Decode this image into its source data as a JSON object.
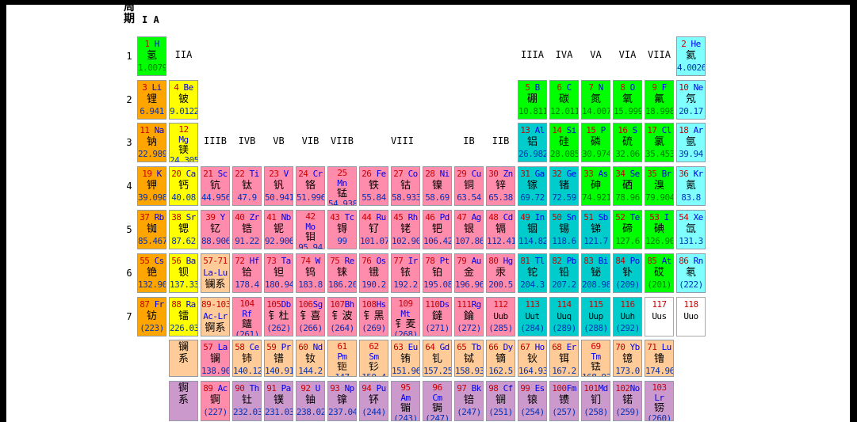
{
  "title_block": {
    "line1": "周",
    "line2": "期",
    "group1": "I A"
  },
  "group_headers": [
    {
      "label": "IIA",
      "row": "1",
      "col": 2
    },
    {
      "label": "IIIA",
      "row": "1",
      "col": 13
    },
    {
      "label": "IVA",
      "row": "1",
      "col": 14
    },
    {
      "label": "VA",
      "row": "1",
      "col": 15
    },
    {
      "label": "VIA",
      "row": "1",
      "col": 16
    },
    {
      "label": "VIIA",
      "row": "1",
      "col": 17
    },
    {
      "label": "IIIB",
      "row": "3",
      "col": 3
    },
    {
      "label": "IVB",
      "row": "3",
      "col": 4
    },
    {
      "label": "VB",
      "row": "3",
      "col": 5
    },
    {
      "label": "VIB",
      "row": "3",
      "col": 6
    },
    {
      "label": "VIIB",
      "row": "3",
      "col": 7
    },
    {
      "label": "VIII",
      "row": "3",
      "col": 8.9
    },
    {
      "label": "IB",
      "row": "3",
      "col": 11
    },
    {
      "label": "IIB",
      "row": "3",
      "col": 12
    }
  ],
  "periods": [
    {
      "n": "1",
      "row": "1"
    },
    {
      "n": "2",
      "row": "2"
    },
    {
      "n": "3",
      "row": "3"
    },
    {
      "n": "4",
      "row": "4"
    },
    {
      "n": "5",
      "row": "5"
    },
    {
      "n": "6",
      "row": "6"
    },
    {
      "n": "7",
      "row": "7"
    }
  ],
  "series_labels": [
    {
      "name": "lanthanide-series",
      "label": "镧系",
      "row": "L",
      "bg": "peach"
    },
    {
      "name": "actinide-series",
      "label": "锕系",
      "row": "A",
      "bg": "plum"
    }
  ],
  "colors": {
    "nonmetal_green": "#00FF00",
    "noble_gas_cyan": "#7FFFFF",
    "alkali_orange": "#FFA500",
    "alkaline_earth_yellow": "#FFFF00",
    "transition_pink": "#FF8CAA",
    "post_transition_teal": "#00CCCC",
    "lanthanide_peach": "#FFCC99",
    "actinide_plum": "#CC99CC",
    "undiscovered_white": "#FFFFFF",
    "number_text": "#CC0000",
    "symbol_text": "#0000EE",
    "mass_text_blue": "#0033BB",
    "mass_text_green": "#007700"
  },
  "elements": [
    {
      "n": "1",
      "s": "H",
      "cn": "氢",
      "m": "1.0079",
      "r": "1",
      "c": 1,
      "bg": "green"
    },
    {
      "n": "2",
      "s": "He",
      "cn": "氦",
      "m": "4.0026",
      "r": "1",
      "c": 18,
      "bg": "cyan"
    },
    {
      "n": "3",
      "s": "Li",
      "cn": "锂",
      "m": "6.941",
      "r": "2",
      "c": 1,
      "bg": "orange"
    },
    {
      "n": "4",
      "s": "Be",
      "cn": "铍",
      "m": "9.0122",
      "r": "2",
      "c": 2,
      "bg": "yellow"
    },
    {
      "n": "5",
      "s": "B",
      "cn": "硼",
      "m": "10.811",
      "r": "2",
      "c": 13,
      "bg": "green"
    },
    {
      "n": "6",
      "s": "C",
      "cn": "碳",
      "m": "12.011",
      "r": "2",
      "c": 14,
      "bg": "green"
    },
    {
      "n": "7",
      "s": "N",
      "cn": "氮",
      "m": "14.007",
      "r": "2",
      "c": 15,
      "bg": "green"
    },
    {
      "n": "8",
      "s": "O",
      "cn": "氧",
      "m": "15.999",
      "r": "2",
      "c": 16,
      "bg": "green"
    },
    {
      "n": "9",
      "s": "F",
      "cn": "氟",
      "m": "18.998",
      "r": "2",
      "c": 17,
      "bg": "green"
    },
    {
      "n": "10",
      "s": "Ne",
      "cn": "氖",
      "m": "20.17",
      "r": "2",
      "c": 18,
      "bg": "cyan"
    },
    {
      "n": "11",
      "s": "Na",
      "cn": "钠",
      "m": "22.9898",
      "r": "3",
      "c": 1,
      "bg": "orange"
    },
    {
      "n": "12",
      "s": "Mg",
      "cn": "镁",
      "m": "24.305",
      "r": "3",
      "c": 2,
      "bg": "yellow",
      "wrap": true
    },
    {
      "n": "13",
      "s": "Al",
      "cn": "铝",
      "m": "26.982",
      "r": "3",
      "c": 13,
      "bg": "teal"
    },
    {
      "n": "14",
      "s": "Si",
      "cn": "硅",
      "m": "28.085",
      "r": "3",
      "c": 14,
      "bg": "green"
    },
    {
      "n": "15",
      "s": "P",
      "cn": "磷",
      "m": "30.974",
      "r": "3",
      "c": 15,
      "bg": "green"
    },
    {
      "n": "16",
      "s": "S",
      "cn": "硫",
      "m": "32.06",
      "r": "3",
      "c": 16,
      "bg": "green"
    },
    {
      "n": "17",
      "s": "Cl",
      "cn": "氯",
      "m": "35.453",
      "r": "3",
      "c": 17,
      "bg": "green"
    },
    {
      "n": "18",
      "s": "Ar",
      "cn": "氩",
      "m": "39.94",
      "r": "3",
      "c": 18,
      "bg": "cyan"
    },
    {
      "n": "19",
      "s": "K",
      "cn": "钾",
      "m": "39.098",
      "r": "4",
      "c": 1,
      "bg": "orange"
    },
    {
      "n": "20",
      "s": "Ca",
      "cn": "钙",
      "m": "40.08",
      "r": "4",
      "c": 2,
      "bg": "yellow"
    },
    {
      "n": "21",
      "s": "Sc",
      "cn": "钪",
      "m": "44.956",
      "r": "4",
      "c": 3,
      "bg": "pink"
    },
    {
      "n": "22",
      "s": "Ti",
      "cn": "钛",
      "m": "47.9",
      "r": "4",
      "c": 4,
      "bg": "pink"
    },
    {
      "n": "23",
      "s": "V",
      "cn": "钒",
      "m": "50.9415",
      "r": "4",
      "c": 5,
      "bg": "pink"
    },
    {
      "n": "24",
      "s": "Cr",
      "cn": "铬",
      "m": "51.996",
      "r": "4",
      "c": 6,
      "bg": "pink"
    },
    {
      "n": "25",
      "s": "Mn",
      "cn": "锰",
      "m": "54.938",
      "r": "4",
      "c": 7,
      "bg": "pink",
      "wrap": true
    },
    {
      "n": "26",
      "s": "Fe",
      "cn": "铁",
      "m": "55.84",
      "r": "4",
      "c": 8,
      "bg": "pink"
    },
    {
      "n": "27",
      "s": "Co",
      "cn": "钴",
      "m": "58.933",
      "r": "4",
      "c": 9,
      "bg": "pink"
    },
    {
      "n": "28",
      "s": "Ni",
      "cn": "镍",
      "m": "58.69",
      "r": "4",
      "c": 10,
      "bg": "pink"
    },
    {
      "n": "29",
      "s": "Cu",
      "cn": "铜",
      "m": "63.54",
      "r": "4",
      "c": 11,
      "bg": "pink"
    },
    {
      "n": "30",
      "s": "Zn",
      "cn": "锌",
      "m": "65.38",
      "r": "4",
      "c": 12,
      "bg": "pink"
    },
    {
      "n": "31",
      "s": "Ga",
      "cn": "镓",
      "m": "69.72",
      "r": "4",
      "c": 13,
      "bg": "teal"
    },
    {
      "n": "32",
      "s": "Ge",
      "cn": "锗",
      "m": "72.59",
      "r": "4",
      "c": 14,
      "bg": "teal"
    },
    {
      "n": "33",
      "s": "As",
      "cn": "砷",
      "m": "74.9216",
      "r": "4",
      "c": 15,
      "bg": "green"
    },
    {
      "n": "34",
      "s": "Se",
      "cn": "硒",
      "m": "78.96",
      "r": "4",
      "c": 16,
      "bg": "green"
    },
    {
      "n": "35",
      "s": "Br",
      "cn": "溴",
      "m": "79.904",
      "r": "4",
      "c": 17,
      "bg": "green"
    },
    {
      "n": "36",
      "s": "Kr",
      "cn": "氪",
      "m": "83.8",
      "r": "4",
      "c": 18,
      "bg": "cyan"
    },
    {
      "n": "37",
      "s": "Rb",
      "cn": "铷",
      "m": "85.467",
      "r": "5",
      "c": 1,
      "bg": "orange"
    },
    {
      "n": "38",
      "s": "Sr",
      "cn": "锶",
      "m": "87.62",
      "r": "5",
      "c": 2,
      "bg": "yellow"
    },
    {
      "n": "39",
      "s": "Y",
      "cn": "钇",
      "m": "88.906",
      "r": "5",
      "c": 3,
      "bg": "pink"
    },
    {
      "n": "40",
      "s": "Zr",
      "cn": "锆",
      "m": "91.22",
      "r": "5",
      "c": 4,
      "bg": "pink"
    },
    {
      "n": "41",
      "s": "Nb",
      "cn": "铌",
      "m": "92.9064",
      "r": "5",
      "c": 5,
      "bg": "pink"
    },
    {
      "n": "42",
      "s": "Mo",
      "cn": "钼",
      "m": "95.94",
      "r": "5",
      "c": 6,
      "bg": "pink",
      "wrap": true
    },
    {
      "n": "43",
      "s": "Tc",
      "cn": "锝",
      "m": "99",
      "r": "5",
      "c": 7,
      "bg": "pink"
    },
    {
      "n": "44",
      "s": "Ru",
      "cn": "钌",
      "m": "101.07",
      "r": "5",
      "c": 8,
      "bg": "pink"
    },
    {
      "n": "45",
      "s": "Rh",
      "cn": "铑",
      "m": "102.906",
      "r": "5",
      "c": 9,
      "bg": "pink"
    },
    {
      "n": "46",
      "s": "Pd",
      "cn": "钯",
      "m": "106.42",
      "r": "5",
      "c": 10,
      "bg": "pink"
    },
    {
      "n": "47",
      "s": "Ag",
      "cn": "银",
      "m": "107.868",
      "r": "5",
      "c": 11,
      "bg": "pink"
    },
    {
      "n": "48",
      "s": "Cd",
      "cn": "镉",
      "m": "112.41",
      "r": "5",
      "c": 12,
      "bg": "pink"
    },
    {
      "n": "49",
      "s": "In",
      "cn": "铟",
      "m": "114.82",
      "r": "5",
      "c": 13,
      "bg": "teal"
    },
    {
      "n": "50",
      "s": "Sn",
      "cn": "锡",
      "m": "118.6",
      "r": "5",
      "c": 14,
      "bg": "teal"
    },
    {
      "n": "51",
      "s": "Sb",
      "cn": "锑",
      "m": "121.7",
      "r": "5",
      "c": 15,
      "bg": "teal"
    },
    {
      "n": "52",
      "s": "Te",
      "cn": "碲",
      "m": "127.6",
      "r": "5",
      "c": 16,
      "bg": "green"
    },
    {
      "n": "53",
      "s": "I",
      "cn": "碘",
      "m": "126.905",
      "r": "5",
      "c": 17,
      "bg": "green"
    },
    {
      "n": "54",
      "s": "Xe",
      "cn": "氙",
      "m": "131.3",
      "r": "5",
      "c": 18,
      "bg": "cyan"
    },
    {
      "n": "55",
      "s": "Cs",
      "cn": "铯",
      "m": "132.905",
      "r": "6",
      "c": 1,
      "bg": "orange"
    },
    {
      "n": "56",
      "s": "Ba",
      "cn": "钡",
      "m": "137.33",
      "r": "6",
      "c": 2,
      "bg": "yellow"
    },
    {
      "n": "57-71",
      "s": "La-Lu",
      "cn": "镧系",
      "m": "",
      "r": "6",
      "c": 3,
      "bg": "peach",
      "ph": true
    },
    {
      "n": "72",
      "s": "Hf",
      "cn": "铪",
      "m": "178.4",
      "r": "6",
      "c": 4,
      "bg": "pink"
    },
    {
      "n": "73",
      "s": "Ta",
      "cn": "钽",
      "m": "180.947",
      "r": "6",
      "c": 5,
      "bg": "pink"
    },
    {
      "n": "74",
      "s": "W",
      "cn": "钨",
      "m": "183.8",
      "r": "6",
      "c": 6,
      "bg": "pink"
    },
    {
      "n": "75",
      "s": "Re",
      "cn": "铼",
      "m": "186.207",
      "r": "6",
      "c": 7,
      "bg": "pink"
    },
    {
      "n": "76",
      "s": "Os",
      "cn": "锇",
      "m": "190.2",
      "r": "6",
      "c": 8,
      "bg": "pink"
    },
    {
      "n": "77",
      "s": "Ir",
      "cn": "铱",
      "m": "192.2",
      "r": "6",
      "c": 9,
      "bg": "pink"
    },
    {
      "n": "78",
      "s": "Pt",
      "cn": "铂",
      "m": "195.08",
      "r": "6",
      "c": 10,
      "bg": "pink"
    },
    {
      "n": "79",
      "s": "Au",
      "cn": "金",
      "m": "196.967",
      "r": "6",
      "c": 11,
      "bg": "pink"
    },
    {
      "n": "80",
      "s": "Hg",
      "cn": "汞",
      "m": "200.5",
      "r": "6",
      "c": 12,
      "bg": "pink"
    },
    {
      "n": "81",
      "s": "Tl",
      "cn": "铊",
      "m": "204.3",
      "r": "6",
      "c": 13,
      "bg": "teal"
    },
    {
      "n": "82",
      "s": "Pb",
      "cn": "铅",
      "m": "207.2",
      "r": "6",
      "c": 14,
      "bg": "teal"
    },
    {
      "n": "83",
      "s": "Bi",
      "cn": "铋",
      "m": "208.98",
      "r": "6",
      "c": 15,
      "bg": "teal"
    },
    {
      "n": "84",
      "s": "Po",
      "cn": "钋",
      "m": "(209)",
      "r": "6",
      "c": 16,
      "bg": "teal"
    },
    {
      "n": "85",
      "s": "At",
      "cn": "砹",
      "m": "(201)",
      "r": "6",
      "c": 17,
      "bg": "green"
    },
    {
      "n": "86",
      "s": "Rn",
      "cn": "氡",
      "m": "(222)",
      "r": "6",
      "c": 18,
      "bg": "cyan"
    },
    {
      "n": "87",
      "s": "Fr",
      "cn": "钫",
      "m": "(223)",
      "r": "7",
      "c": 1,
      "bg": "orange"
    },
    {
      "n": "88",
      "s": "Ra",
      "cn": "镭",
      "m": "226.03",
      "r": "7",
      "c": 2,
      "bg": "yellow"
    },
    {
      "n": "89-103",
      "s": "Ac-Lr",
      "cn": "锕系",
      "m": "",
      "r": "7",
      "c": 3,
      "bg": "peach",
      "ph": true
    },
    {
      "n": "104",
      "s": "Rf",
      "cn": "鑪",
      "m": "(261)",
      "r": "7",
      "c": 4,
      "bg": "pink",
      "wrap": true
    },
    {
      "n": "105",
      "s": "Db",
      "cn": "钅杜",
      "m": "(262)",
      "r": "7",
      "c": 5,
      "bg": "pink"
    },
    {
      "n": "106",
      "s": "Sg",
      "cn": "钅喜",
      "m": "(266)",
      "r": "7",
      "c": 6,
      "bg": "pink"
    },
    {
      "n": "107",
      "s": "Bh",
      "cn": "钅波",
      "m": "(264)",
      "r": "7",
      "c": 7,
      "bg": "pink"
    },
    {
      "n": "108",
      "s": "Hs",
      "cn": "钅黑",
      "m": "(269)",
      "r": "7",
      "c": 8,
      "bg": "pink"
    },
    {
      "n": "109",
      "s": "Mt",
      "cn": "钅麦",
      "m": "(268)",
      "r": "7",
      "c": 9,
      "bg": "pink",
      "wrap": true
    },
    {
      "n": "110",
      "s": "Ds",
      "cn": "鐽",
      "m": "(271)",
      "r": "7",
      "c": 10,
      "bg": "pink"
    },
    {
      "n": "111",
      "s": "Rg",
      "cn": "錀",
      "m": "(272)",
      "r": "7",
      "c": 11,
      "bg": "pink"
    },
    {
      "n": "112",
      "s": "Uub",
      "cn": "",
      "m": "(285)",
      "r": "7",
      "c": 12,
      "bg": "pink",
      "sk": true
    },
    {
      "n": "113",
      "s": "Uut",
      "cn": "",
      "m": "(284)",
      "r": "7",
      "c": 13,
      "bg": "teal",
      "sk": true
    },
    {
      "n": "114",
      "s": "Uuq",
      "cn": "",
      "m": "(289)",
      "r": "7",
      "c": 14,
      "bg": "teal",
      "sk": true
    },
    {
      "n": "115",
      "s": "Uup",
      "cn": "",
      "m": "(288)",
      "r": "7",
      "c": 15,
      "bg": "teal",
      "sk": true
    },
    {
      "n": "116",
      "s": "Uuh",
      "cn": "",
      "m": "(292)",
      "r": "7",
      "c": 16,
      "bg": "teal",
      "sk": true
    },
    {
      "n": "117",
      "s": "Uus",
      "cn": "",
      "m": "",
      "r": "7",
      "c": 17,
      "bg": "white",
      "sk": true
    },
    {
      "n": "118",
      "s": "Uuo",
      "cn": "",
      "m": "",
      "r": "7",
      "c": 18,
      "bg": "white",
      "sk": true
    },
    {
      "n": "57",
      "s": "La",
      "cn": "镧",
      "m": "138.905",
      "r": "L",
      "c": 3,
      "bg": "pink"
    },
    {
      "n": "58",
      "s": "Ce",
      "cn": "铈",
      "m": "140.12",
      "r": "L",
      "c": 4,
      "bg": "peach"
    },
    {
      "n": "59",
      "s": "Pr",
      "cn": "镨",
      "m": "140.91",
      "r": "L",
      "c": 5,
      "bg": "peach"
    },
    {
      "n": "60",
      "s": "Nd",
      "cn": "钕",
      "m": "144.2",
      "r": "L",
      "c": 6,
      "bg": "peach"
    },
    {
      "n": "61",
      "s": "Pm",
      "cn": "钷",
      "m": "147",
      "r": "L",
      "c": 7,
      "bg": "peach",
      "wrap": true
    },
    {
      "n": "62",
      "s": "Sm",
      "cn": "钐",
      "m": "150.4",
      "r": "L",
      "c": 8,
      "bg": "peach",
      "wrap": true
    },
    {
      "n": "63",
      "s": "Eu",
      "cn": "铕",
      "m": "151.96",
      "r": "L",
      "c": 9,
      "bg": "peach"
    },
    {
      "n": "64",
      "s": "Gd",
      "cn": "钆",
      "m": "157.25",
      "r": "L",
      "c": 10,
      "bg": "peach"
    },
    {
      "n": "65",
      "s": "Tb",
      "cn": "铽",
      "m": "158.93",
      "r": "L",
      "c": 11,
      "bg": "peach"
    },
    {
      "n": "66",
      "s": "Dy",
      "cn": "镝",
      "m": "162.5",
      "r": "L",
      "c": 12,
      "bg": "peach"
    },
    {
      "n": "67",
      "s": "Ho",
      "cn": "钬",
      "m": "164.93",
      "r": "L",
      "c": 13,
      "bg": "peach"
    },
    {
      "n": "68",
      "s": "Er",
      "cn": "铒",
      "m": "167.2",
      "r": "L",
      "c": 14,
      "bg": "peach"
    },
    {
      "n": "69",
      "s": "Tm",
      "cn": "铥",
      "m": "168.934",
      "r": "L",
      "c": 15,
      "bg": "peach",
      "wrap": true
    },
    {
      "n": "70",
      "s": "Yb",
      "cn": "镱",
      "m": "173.0",
      "r": "L",
      "c": 16,
      "bg": "peach"
    },
    {
      "n": "71",
      "s": "Lu",
      "cn": "镥",
      "m": "174.96",
      "r": "L",
      "c": 17,
      "bg": "peach"
    },
    {
      "n": "89",
      "s": "Ac",
      "cn": "锕",
      "m": "(227)",
      "r": "A",
      "c": 3,
      "bg": "pink"
    },
    {
      "n": "90",
      "s": "Th",
      "cn": "钍",
      "m": "232.03",
      "r": "A",
      "c": 4,
      "bg": "plum"
    },
    {
      "n": "91",
      "s": "Pa",
      "cn": "镤",
      "m": "231.03",
      "r": "A",
      "c": 5,
      "bg": "plum"
    },
    {
      "n": "92",
      "s": "U",
      "cn": "铀",
      "m": "238.02",
      "r": "A",
      "c": 6,
      "bg": "plum"
    },
    {
      "n": "93",
      "s": "Np",
      "cn": "镎",
      "m": "237.04",
      "r": "A",
      "c": 7,
      "bg": "plum"
    },
    {
      "n": "94",
      "s": "Pu",
      "cn": "钚",
      "m": "(244)",
      "r": "A",
      "c": 8,
      "bg": "plum"
    },
    {
      "n": "95",
      "s": "Am",
      "cn": "镅",
      "m": "(243)",
      "r": "A",
      "c": 9,
      "bg": "plum",
      "wrap": true
    },
    {
      "n": "96",
      "s": "Cm",
      "cn": "锔",
      "m": "(247)",
      "r": "A",
      "c": 10,
      "bg": "plum",
      "wrap": true
    },
    {
      "n": "97",
      "s": "Bk",
      "cn": "锫",
      "m": "(247)",
      "r": "A",
      "c": 11,
      "bg": "plum"
    },
    {
      "n": "98",
      "s": "Cf",
      "cn": "锎",
      "m": "(251)",
      "r": "A",
      "c": 12,
      "bg": "plum"
    },
    {
      "n": "99",
      "s": "Es",
      "cn": "锿",
      "m": "(254)",
      "r": "A",
      "c": 13,
      "bg": "plum"
    },
    {
      "n": "100",
      "s": "Fm",
      "cn": "镄",
      "m": "(257)",
      "r": "A",
      "c": 14,
      "bg": "plum"
    },
    {
      "n": "101",
      "s": "Md",
      "cn": "钔",
      "m": "(258)",
      "r": "A",
      "c": 15,
      "bg": "plum"
    },
    {
      "n": "102",
      "s": "No",
      "cn": "锘",
      "m": "(259)",
      "r": "A",
      "c": 16,
      "bg": "plum"
    },
    {
      "n": "103",
      "s": "Lr",
      "cn": "铹",
      "m": "(260)",
      "r": "A",
      "c": 17,
      "bg": "plum",
      "wrap": true
    }
  ]
}
